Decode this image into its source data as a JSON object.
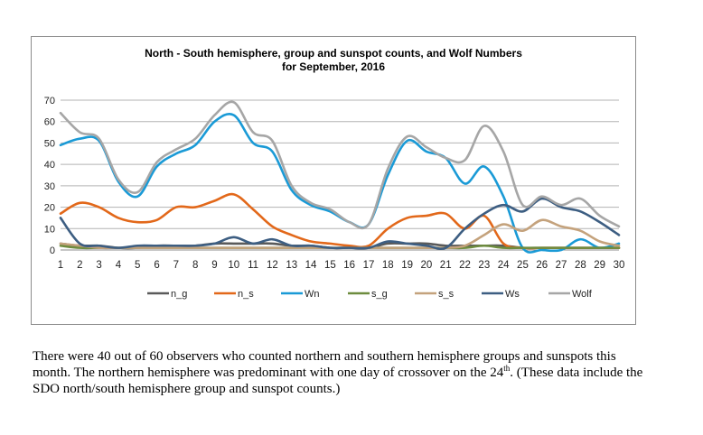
{
  "chart_data": {
    "type": "line",
    "title": "North - South hemisphere, group and sunspot counts, and Wolf Numbers",
    "subtitle": "for September, 2016",
    "xlabel": "",
    "ylabel": "",
    "x": [
      1,
      2,
      3,
      4,
      5,
      6,
      7,
      8,
      9,
      10,
      11,
      12,
      13,
      14,
      15,
      16,
      17,
      18,
      19,
      20,
      21,
      22,
      23,
      24,
      25,
      26,
      27,
      28,
      29,
      30
    ],
    "ylim": [
      0,
      70
    ],
    "yticks": [
      0,
      10,
      20,
      30,
      40,
      50,
      60,
      70
    ],
    "grid": true,
    "legend_position": "bottom",
    "series": [
      {
        "name": "n_g",
        "color": "#5a5a5a",
        "values": [
          3,
          2,
          2,
          1,
          1,
          2,
          2,
          2,
          3,
          3,
          3,
          3,
          2,
          2,
          1,
          1,
          1,
          3,
          3,
          3,
          2,
          2,
          2,
          2,
          1,
          1,
          1,
          1,
          1,
          1
        ]
      },
      {
        "name": "n_s",
        "color": "#e2681a",
        "values": [
          17,
          22,
          20,
          15,
          13,
          14,
          20,
          20,
          23,
          26,
          19,
          11,
          7,
          4,
          3,
          2,
          2,
          10,
          15,
          16,
          17,
          10,
          16,
          3,
          1,
          1,
          1,
          1,
          1,
          1
        ]
      },
      {
        "name": "Wn",
        "color": "#1a9ad6",
        "values": [
          49,
          52,
          51,
          32,
          25,
          39,
          45,
          49,
          60,
          63,
          50,
          46,
          28,
          21,
          18,
          13,
          12,
          35,
          51,
          46,
          43,
          31,
          39,
          25,
          1,
          0,
          0,
          5,
          1,
          3
        ]
      },
      {
        "name": "s_g",
        "color": "#6d8c3e",
        "values": [
          2,
          1,
          1,
          1,
          1,
          1,
          1,
          1,
          1,
          1,
          1,
          1,
          1,
          1,
          1,
          1,
          1,
          1,
          1,
          1,
          1,
          1,
          2,
          1,
          1,
          1,
          1,
          1,
          1,
          1
        ]
      },
      {
        "name": "s_s",
        "color": "#c4a27c",
        "values": [
          3,
          2,
          1,
          1,
          1,
          1,
          1,
          1,
          1,
          1,
          1,
          1,
          1,
          1,
          1,
          1,
          1,
          1,
          1,
          1,
          1,
          2,
          7,
          12,
          9,
          14,
          11,
          9,
          4,
          2
        ]
      },
      {
        "name": "Ws",
        "color": "#3d5e82",
        "values": [
          15,
          3,
          2,
          1,
          2,
          2,
          2,
          2,
          3,
          6,
          3,
          5,
          2,
          2,
          1,
          1,
          1,
          4,
          3,
          2,
          1,
          10,
          17,
          21,
          18,
          24,
          20,
          18,
          13,
          7
        ]
      },
      {
        "name": "Wolf",
        "color": "#a6a6a6",
        "values": [
          64,
          55,
          52,
          33,
          27,
          41,
          47,
          52,
          63,
          69,
          55,
          51,
          30,
          22,
          19,
          13,
          12,
          38,
          53,
          48,
          43,
          42,
          58,
          46,
          21,
          25,
          21,
          24,
          16,
          11
        ]
      }
    ]
  },
  "caption": {
    "line1": "There were 40 out of 60 observers who counted northern and southern hemisphere groups and sunspots this",
    "line2_before": "month. The northern hemisphere was predominant with one day of crossover on the 24",
    "line2_sup": "th",
    "line2_after": ". (These data include the",
    "line3": "SDO north/south hemisphere group and sunspot counts.)"
  }
}
